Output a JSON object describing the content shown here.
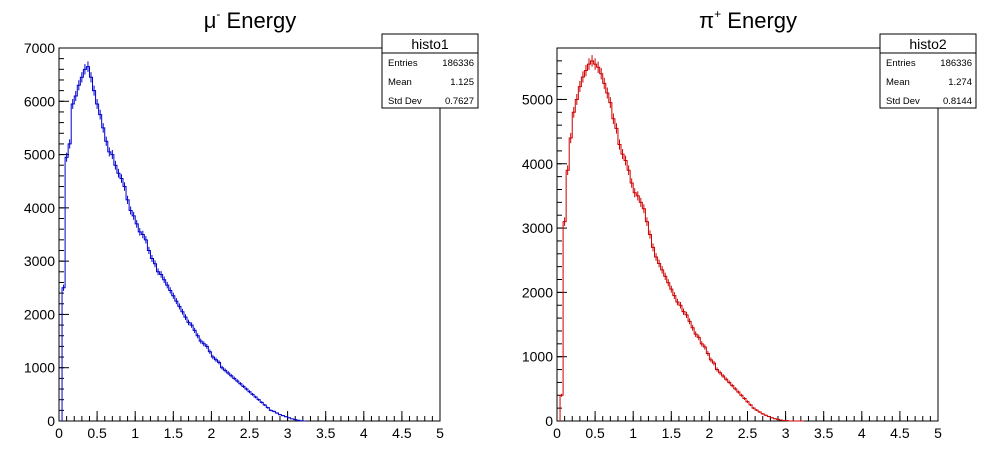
{
  "chart_data": [
    {
      "type": "histogram",
      "title_main": "μ",
      "title_sup": "-",
      "title_rest": " Energy",
      "color": "#0000cc",
      "xlim": [
        0,
        5
      ],
      "ylim": [
        0,
        7000
      ],
      "xticks": [
        "0",
        "0.5",
        "1",
        "1.5",
        "2",
        "2.5",
        "3",
        "3.5",
        "4",
        "4.5",
        "5"
      ],
      "yticks": [
        "0",
        "1000",
        "2000",
        "3000",
        "4000",
        "5000",
        "6000",
        "7000"
      ],
      "stats": {
        "name": "histo1",
        "rows": [
          {
            "label": "Entries",
            "value": "186336"
          },
          {
            "label": "Mean",
            "value": "1.125"
          },
          {
            "label": "Std Dev",
            "value": "0.7627"
          }
        ]
      },
      "bin_width": 0.04,
      "bins_start": 0.04,
      "values": [
        2500,
        4950,
        5200,
        5950,
        6100,
        6300,
        6450,
        6600,
        6650,
        6450,
        6200,
        5950,
        5750,
        5500,
        5250,
        5050,
        5000,
        4800,
        4650,
        4550,
        4400,
        4150,
        3950,
        3850,
        3700,
        3550,
        3500,
        3400,
        3200,
        3050,
        2950,
        2800,
        2750,
        2650,
        2550,
        2450,
        2350,
        2250,
        2150,
        2050,
        1950,
        1850,
        1800,
        1700,
        1600,
        1500,
        1450,
        1400,
        1300,
        1200,
        1150,
        1100,
        1000,
        950,
        900,
        850,
        800,
        750,
        700,
        650,
        600,
        550,
        500,
        450,
        400,
        350,
        300,
        250,
        200,
        180,
        150,
        120,
        100,
        80,
        60,
        40,
        25,
        15,
        5,
        0
      ]
    },
    {
      "type": "histogram",
      "title_main": "π",
      "title_sup": "+",
      "title_rest": " Energy",
      "color": "#cc0000",
      "xlim": [
        0,
        5
      ],
      "ylim": [
        0,
        5800
      ],
      "xticks": [
        "0",
        "0.5",
        "1",
        "1.5",
        "2",
        "2.5",
        "3",
        "3.5",
        "4",
        "4.5",
        "5"
      ],
      "yticks": [
        "0",
        "1000",
        "2000",
        "3000",
        "4000",
        "5000"
      ],
      "stats": {
        "name": "histo2",
        "rows": [
          {
            "label": "Entries",
            "value": "186336"
          },
          {
            "label": "Mean",
            "value": "1.274"
          },
          {
            "label": "Std Dev",
            "value": "0.8144"
          }
        ]
      },
      "bin_width": 0.04,
      "bins_start": 0.04,
      "values": [
        400,
        3100,
        3900,
        4400,
        4800,
        5000,
        5200,
        5350,
        5450,
        5550,
        5600,
        5550,
        5500,
        5400,
        5250,
        5100,
        4950,
        4700,
        4550,
        4300,
        4150,
        4050,
        3900,
        3700,
        3550,
        3500,
        3400,
        3300,
        3100,
        2900,
        2700,
        2550,
        2450,
        2350,
        2250,
        2150,
        2050,
        1950,
        1850,
        1800,
        1700,
        1650,
        1550,
        1450,
        1350,
        1300,
        1200,
        1150,
        1050,
        950,
        900,
        800,
        750,
        700,
        650,
        600,
        550,
        500,
        450,
        400,
        350,
        300,
        250,
        200,
        170,
        140,
        110,
        90,
        70,
        50,
        35,
        25,
        15,
        8,
        5,
        0,
        0,
        0,
        0,
        0
      ]
    }
  ]
}
